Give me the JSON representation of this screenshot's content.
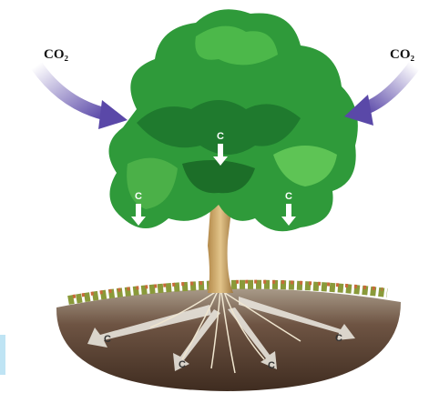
{
  "inputs": [
    {
      "label": "CO₂"
    },
    {
      "label": "CO₂"
    }
  ],
  "canopy_flows": [
    {
      "label": "C"
    },
    {
      "label": "C"
    },
    {
      "label": "C"
    }
  ],
  "soil_flows": [
    {
      "label": "C"
    },
    {
      "label": "C"
    },
    {
      "label": "C"
    },
    {
      "label": "C"
    }
  ]
}
